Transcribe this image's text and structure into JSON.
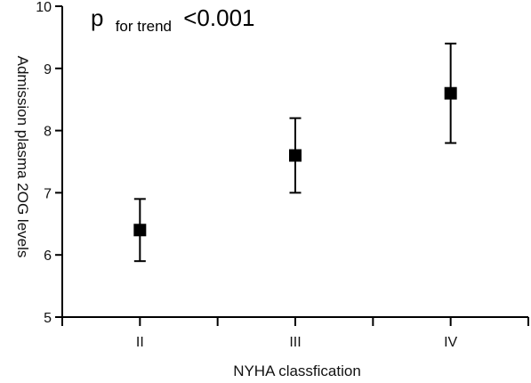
{
  "chart_data": {
    "type": "scatter",
    "categories": [
      "II",
      "III",
      "IV"
    ],
    "values": [
      6.4,
      7.6,
      8.6
    ],
    "error_low": [
      5.9,
      7.0,
      7.8
    ],
    "error_high": [
      6.9,
      8.2,
      9.4
    ],
    "xlabel": "NYHA classfication",
    "ylabel": "Admission plasma 2OG levels",
    "ylim": [
      5,
      10
    ],
    "yticks": [
      5,
      6,
      7,
      8,
      9,
      10
    ],
    "grid": false,
    "marker": "square",
    "color": "#000000",
    "annotation": {
      "main": "p",
      "subscript": "for trend",
      "value": "<0.001"
    }
  }
}
